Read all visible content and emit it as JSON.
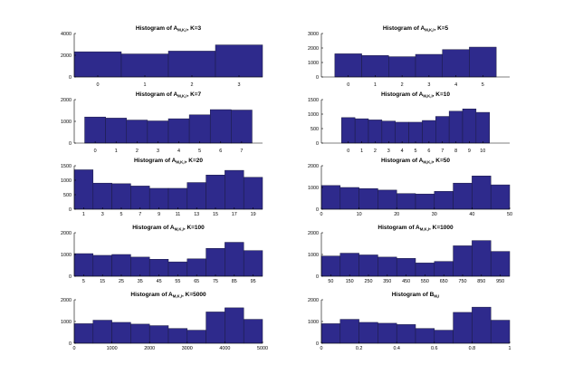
{
  "figure": {
    "bar_color": "#2e2a8c",
    "edge_color": "#1a1a40"
  },
  "chart_data": [
    {
      "type": "bar",
      "title": "Histogram of A",
      "title_subscript": "M,K,I",
      "title_suffix": ", K=3",
      "bin_edges": [
        -0.5,
        0.5,
        1.5,
        2.5,
        3.5
      ],
      "values": [
        2320,
        2120,
        2380,
        2950
      ],
      "xlim": [
        -0.5,
        3.5
      ],
      "ylim": [
        0,
        4000
      ],
      "xticks": [
        0,
        1,
        2,
        3
      ],
      "xtick_labels": [
        "0",
        "1",
        "2",
        "3"
      ],
      "yticks": [
        0,
        2000,
        4000
      ],
      "ytick_labels": [
        "0",
        "2000",
        "4000"
      ],
      "xtick_style": "below"
    },
    {
      "type": "bar",
      "title": "Histogram of A",
      "title_subscript": "M,K,I",
      "title_suffix": ", K=5",
      "bin_edges": [
        -0.5,
        0.5,
        1.5,
        2.5,
        3.5,
        4.5,
        5.5
      ],
      "values": [
        1600,
        1480,
        1400,
        1560,
        1890,
        2060
      ],
      "xlim": [
        -1,
        6
      ],
      "ylim": [
        0,
        3000
      ],
      "xticks": [
        0,
        1,
        2,
        3,
        4,
        5
      ],
      "xtick_labels": [
        "0",
        "1",
        "2",
        "3",
        "4",
        "5"
      ],
      "yticks": [
        0,
        1000,
        2000,
        3000
      ],
      "ytick_labels": [
        "0",
        "1000",
        "2000",
        "3000"
      ],
      "xtick_style": "below"
    },
    {
      "type": "bar",
      "title": "Histogram of A",
      "title_subscript": "M,K,I",
      "title_suffix": ", K=7",
      "bin_edges": [
        -0.5,
        0.5,
        1.5,
        2.5,
        3.5,
        4.5,
        5.5,
        6.5,
        7.5
      ],
      "values": [
        1200,
        1150,
        1060,
        1020,
        1120,
        1300,
        1540,
        1520
      ],
      "xlim": [
        -1,
        8
      ],
      "ylim": [
        0,
        2000
      ],
      "xticks": [
        0,
        1,
        2,
        3,
        4,
        5,
        6,
        7
      ],
      "xtick_labels": [
        "0",
        "1",
        "2",
        "3",
        "4",
        "5",
        "6",
        "7"
      ],
      "yticks": [
        0,
        1000,
        2000
      ],
      "ytick_labels": [
        "0",
        "1000",
        "2000"
      ],
      "xtick_style": "below"
    },
    {
      "type": "bar",
      "title": "Histogram of A",
      "title_subscript": "M,K,I",
      "title_suffix": ", K=10",
      "bin_edges": [
        -0.5,
        0.5,
        1.5,
        2.5,
        3.5,
        4.5,
        5.5,
        6.5,
        7.5,
        8.5,
        9.5,
        10.5
      ],
      "values": [
        880,
        840,
        800,
        760,
        720,
        720,
        780,
        920,
        1100,
        1180,
        1060
      ],
      "xlim": [
        -2,
        12
      ],
      "ylim": [
        0,
        1500
      ],
      "xticks": [
        0,
        1,
        2,
        3,
        4,
        5,
        6,
        7,
        8,
        9,
        10
      ],
      "xtick_labels": [
        "0",
        "1",
        "2",
        "3",
        "4",
        "5",
        "6",
        "7",
        "8",
        "9",
        "10"
      ],
      "yticks": [
        0,
        500,
        1000,
        1500
      ],
      "ytick_labels": [
        "0",
        "500",
        "1000",
        "1500"
      ],
      "xtick_style": "below"
    },
    {
      "type": "bar",
      "title": "Histogram of A",
      "title_subscript": "M,K,I",
      "title_suffix": ", K=20",
      "bin_edges": [
        0,
        2,
        4,
        6,
        8,
        10,
        12,
        14,
        16,
        18,
        20
      ],
      "values": [
        1360,
        900,
        880,
        800,
        720,
        720,
        920,
        1180,
        1340,
        1100
      ],
      "xlim": [
        0,
        20
      ],
      "ylim": [
        0,
        1500
      ],
      "xticks": [
        1,
        3,
        5,
        7,
        9,
        11,
        13,
        15,
        17,
        19
      ],
      "xtick_labels": [
        "1",
        "3",
        "5",
        "7",
        "9",
        "11",
        "13",
        "15",
        "17",
        "19"
      ],
      "yticks": [
        0,
        500,
        1000,
        1500
      ],
      "ytick_labels": [
        "0",
        "500",
        "1000",
        "1500"
      ],
      "xtick_style": "axis"
    },
    {
      "type": "bar",
      "title": "Histogram of A",
      "title_subscript": "M,K,I",
      "title_suffix": ", K=50",
      "bin_edges": [
        0,
        5,
        10,
        15,
        20,
        25,
        30,
        35,
        40,
        45,
        50
      ],
      "values": [
        1090,
        1000,
        950,
        880,
        720,
        700,
        820,
        1200,
        1530,
        1120
      ],
      "xlim": [
        0,
        50
      ],
      "ylim": [
        0,
        2000
      ],
      "xticks": [
        0,
        10,
        20,
        30,
        40,
        50
      ],
      "xtick_labels": [
        "0",
        "10",
        "20",
        "30",
        "40",
        "50"
      ],
      "yticks": [
        0,
        1000,
        2000
      ],
      "ytick_labels": [
        "0",
        "1000",
        "2000"
      ],
      "xtick_style": "axis"
    },
    {
      "type": "bar",
      "title": "Histogram of A",
      "title_subscript": "M,K,I",
      "title_suffix": ", K=100",
      "bin_edges": [
        0,
        10,
        20,
        30,
        40,
        50,
        60,
        70,
        80,
        90,
        100
      ],
      "values": [
        1040,
        960,
        1000,
        880,
        780,
        660,
        800,
        1280,
        1560,
        1180
      ],
      "xlim": [
        0,
        100
      ],
      "ylim": [
        0,
        2000
      ],
      "xticks": [
        5,
        15,
        25,
        35,
        45,
        55,
        65,
        75,
        85,
        95
      ],
      "xtick_labels": [
        "5",
        "15",
        "25",
        "35",
        "45",
        "55",
        "65",
        "75",
        "85",
        "95"
      ],
      "yticks": [
        0,
        1000,
        2000
      ],
      "ytick_labels": [
        "0",
        "1000",
        "2000"
      ],
      "xtick_style": "axis"
    },
    {
      "type": "bar",
      "title": "Histogram of A",
      "title_subscript": "M,K,I",
      "title_suffix": ", K=1000",
      "bin_edges": [
        0,
        100,
        200,
        300,
        400,
        500,
        600,
        700,
        800,
        900,
        1000
      ],
      "values": [
        930,
        1060,
        980,
        880,
        820,
        610,
        680,
        1400,
        1640,
        1140
      ],
      "xlim": [
        0,
        1000
      ],
      "ylim": [
        0,
        2000
      ],
      "xticks": [
        50,
        150,
        250,
        350,
        450,
        550,
        650,
        750,
        850,
        950
      ],
      "xtick_labels": [
        "50",
        "150",
        "250",
        "350",
        "450",
        "550",
        "650",
        "750",
        "850",
        "950"
      ],
      "yticks": [
        0,
        1000,
        2000
      ],
      "ytick_labels": [
        "0",
        "1000",
        "2000"
      ],
      "xtick_style": "axis"
    },
    {
      "type": "bar",
      "title": "Histogram of A",
      "title_subscript": "M,K,I",
      "title_suffix": ", K=5000",
      "bin_edges": [
        0,
        500,
        1000,
        1500,
        2000,
        2500,
        3000,
        3500,
        4000,
        4500,
        5000
      ],
      "values": [
        900,
        1060,
        960,
        880,
        810,
        680,
        600,
        1440,
        1630,
        1100
      ],
      "xlim": [
        0,
        5000
      ],
      "ylim": [
        0,
        2000
      ],
      "xticks": [
        0,
        1000,
        2000,
        3000,
        4000,
        5000
      ],
      "xtick_labels": [
        "0",
        "1000",
        "2000",
        "3000",
        "4000",
        "5000"
      ],
      "yticks": [
        0,
        1000,
        2000
      ],
      "ytick_labels": [
        "0",
        "1000",
        "2000"
      ],
      "xtick_style": "axis"
    },
    {
      "type": "bar",
      "title": "Histogram of B",
      "title_subscript": "M,I",
      "title_suffix": "",
      "bin_edges": [
        0,
        0.1,
        0.2,
        0.3,
        0.4,
        0.5,
        0.6,
        0.7,
        0.8,
        0.9,
        1.0
      ],
      "values": [
        900,
        1100,
        960,
        920,
        860,
        680,
        600,
        1420,
        1660,
        1060
      ],
      "xlim": [
        0,
        1
      ],
      "ylim": [
        0,
        2000
      ],
      "xticks": [
        0,
        0.2,
        0.4,
        0.6,
        0.8,
        1
      ],
      "xtick_labels": [
        "0",
        "0.2",
        "0.4",
        "0.6",
        "0.8",
        "1"
      ],
      "yticks": [
        0,
        1000,
        2000
      ],
      "ytick_labels": [
        "0",
        "1000",
        "2000"
      ],
      "xtick_style": "axis"
    }
  ]
}
